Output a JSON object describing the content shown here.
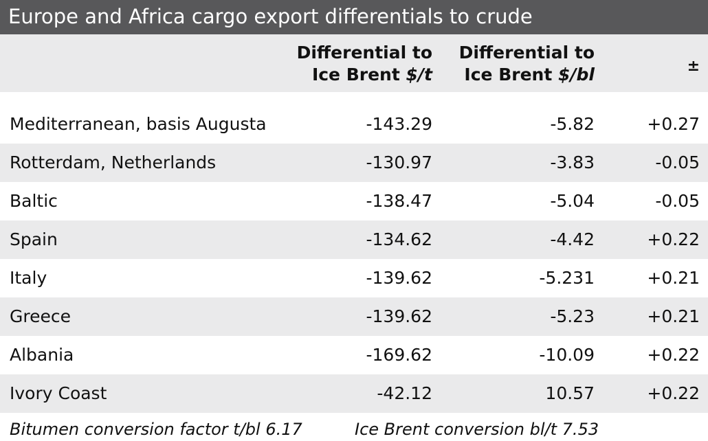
{
  "title": "Europe and Africa cargo export differentials to crude",
  "header": {
    "col1_line1": "Differential to",
    "col1_line2_prefix": "Ice Brent ",
    "col1_line2_unit": "$/t",
    "col2_line1": "Differential to",
    "col2_line2_prefix": "Ice Brent ",
    "col2_line2_unit": "$/bl",
    "col3": "±"
  },
  "rows": [
    {
      "name": "Mediterranean, basis Augusta",
      "per_t": "-143.29",
      "per_bl": "-5.82",
      "change": "+0.27"
    },
    {
      "name": "Rotterdam, Netherlands",
      "per_t": "-130.97",
      "per_bl": "-3.83",
      "change": "-0.05"
    },
    {
      "name": "Baltic",
      "per_t": "-138.47",
      "per_bl": "-5.04",
      "change": "-0.05"
    },
    {
      "name": "Spain",
      "per_t": "-134.62",
      "per_bl": "-4.42",
      "change": "+0.22"
    },
    {
      "name": "Italy",
      "per_t": "-139.62",
      "per_bl": "-5.231",
      "change": "+0.21"
    },
    {
      "name": "Greece",
      "per_t": "-139.62",
      "per_bl": "-5.23",
      "change": "+0.21"
    },
    {
      "name": "Albania",
      "per_t": "-169.62",
      "per_bl": "-10.09",
      "change": "+0.22"
    },
    {
      "name": "Ivory Coast",
      "per_t": "-42.12",
      "per_bl": "10.57",
      "change": "+0.22"
    }
  ],
  "footnotes": {
    "left": "Bitumen conversion factor t/bl 6.17",
    "right": "Ice Brent conversion bl/t 7.53"
  }
}
